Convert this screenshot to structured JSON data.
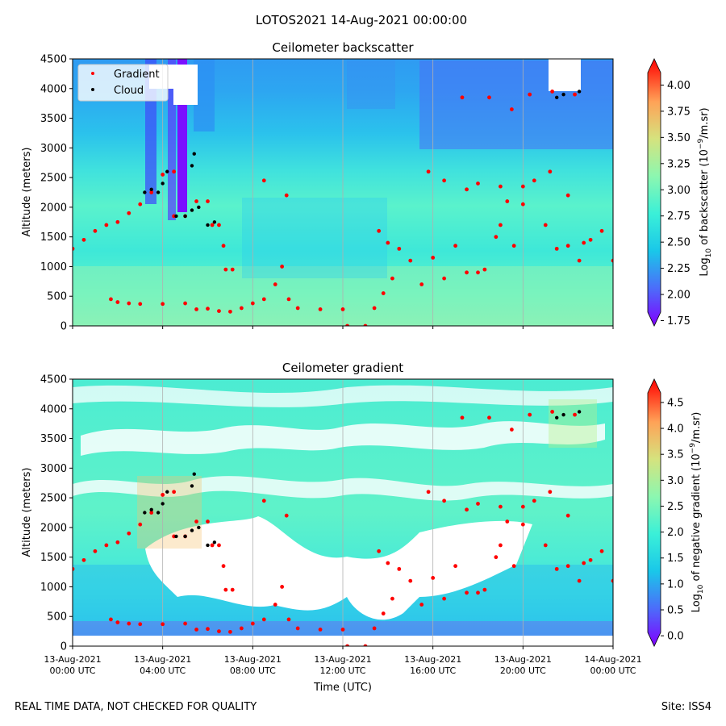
{
  "suptitle": "LOTOS2021 14-Aug-2021 00:00:00",
  "footer": {
    "left": "REAL TIME DATA, NOT CHECKED FOR QUALITY",
    "right": "Site: ISS4"
  },
  "colors": {
    "gradient_marker": "#ff0000",
    "cloud_marker": "#000000",
    "colormap": "rainbow",
    "no_data": "#ffffff"
  },
  "x_axis": {
    "label": "Time (UTC)",
    "tick_labels": [
      [
        "13-Aug-2021",
        "00:00 UTC"
      ],
      [
        "13-Aug-2021",
        "04:00 UTC"
      ],
      [
        "13-Aug-2021",
        "08:00 UTC"
      ],
      [
        "13-Aug-2021",
        "12:00 UTC"
      ],
      [
        "13-Aug-2021",
        "16:00 UTC"
      ],
      [
        "13-Aug-2021",
        "20:00 UTC"
      ],
      [
        "14-Aug-2021",
        "00:00 UTC"
      ]
    ]
  },
  "chart_data": [
    {
      "type": "heatmap",
      "title": "Ceilometer backscatter",
      "xlabel": "",
      "ylabel": "Altitude (meters)",
      "xlim": [
        0,
        24
      ],
      "ylim": [
        0,
        4500
      ],
      "yticks": [
        0,
        500,
        1000,
        1500,
        2000,
        2500,
        3000,
        3500,
        4000,
        4500
      ],
      "grid": "vertical only",
      "legend": {
        "placement": "top-left",
        "entries": [
          "Gradient",
          "Cloud"
        ]
      },
      "colorbar": {
        "label": "Log10 of backscatter (10^-9/m.sr)",
        "range": [
          1.7,
          4.25
        ],
        "ticks": [
          1.75,
          2.0,
          2.25,
          2.5,
          2.75,
          3.0,
          3.25,
          3.5,
          3.75,
          4.0
        ],
        "tick_labels": [
          "1.75",
          "2.00",
          "2.25",
          "2.50",
          "2.75",
          "3.00",
          "3.25",
          "3.50",
          "3.75",
          "4.00"
        ],
        "extend": "both"
      },
      "series": [
        {
          "name": "Gradient",
          "marker": "dot",
          "points": [
            [
              0,
              1300
            ],
            [
              0.5,
              1450
            ],
            [
              1,
              1600
            ],
            [
              1.5,
              1700
            ],
            [
              2,
              1750
            ],
            [
              2.5,
              1900
            ],
            [
              3,
              2050
            ],
            [
              3.5,
              2250
            ],
            [
              4,
              2550
            ],
            [
              4.5,
              2600
            ],
            [
              4.5,
              1850
            ],
            [
              5,
              1850
            ],
            [
              5.5,
              2100
            ],
            [
              6,
              2100
            ],
            [
              6.2,
              1700
            ],
            [
              6.5,
              1700
            ],
            [
              6.7,
              1350
            ],
            [
              6.8,
              950
            ],
            [
              7.1,
              950
            ],
            [
              1.7,
              450
            ],
            [
              2,
              400
            ],
            [
              2.5,
              380
            ],
            [
              3,
              370
            ],
            [
              4,
              370
            ],
            [
              5,
              380
            ],
            [
              5.5,
              280
            ],
            [
              6,
              290
            ],
            [
              6.5,
              250
            ],
            [
              7,
              240
            ],
            [
              7.5,
              300
            ],
            [
              8,
              380
            ],
            [
              8.5,
              450
            ],
            [
              9,
              700
            ],
            [
              9.3,
              1000
            ],
            [
              9.6,
              450
            ],
            [
              10,
              300
            ],
            [
              11,
              280
            ],
            [
              12,
              280
            ],
            [
              12.2,
              0
            ],
            [
              13,
              0
            ],
            [
              13.4,
              300
            ],
            [
              13.8,
              550
            ],
            [
              14.2,
              800
            ],
            [
              13.6,
              1600
            ],
            [
              14,
              1400
            ],
            [
              14.5,
              1300
            ],
            [
              15,
              1100
            ],
            [
              15.5,
              700
            ],
            [
              16,
              1150
            ],
            [
              16.5,
              800
            ],
            [
              17,
              1350
            ],
            [
              17.5,
              900
            ],
            [
              18,
              900
            ],
            [
              18.3,
              950
            ],
            [
              18.8,
              1500
            ],
            [
              19,
              1700
            ],
            [
              19.3,
              2100
            ],
            [
              19.6,
              1350
            ],
            [
              20,
              2050
            ],
            [
              21,
              1700
            ],
            [
              21.5,
              1300
            ],
            [
              22,
              1350
            ],
            [
              22.5,
              1100
            ],
            [
              22.7,
              1400
            ],
            [
              23,
              1450
            ],
            [
              23.5,
              1600
            ],
            [
              24,
              1100
            ],
            [
              15.8,
              2600
            ],
            [
              16.5,
              2450
            ],
            [
              17.5,
              2300
            ],
            [
              18,
              2400
            ],
            [
              19,
              2350
            ],
            [
              20,
              2350
            ],
            [
              20.5,
              2450
            ],
            [
              21.2,
              2600
            ],
            [
              22,
              2200
            ],
            [
              8.5,
              2450
            ],
            [
              9.5,
              2200
            ],
            [
              18.5,
              3850
            ],
            [
              19.5,
              3650
            ],
            [
              17.3,
              3850
            ],
            [
              20.3,
              3900
            ],
            [
              21.3,
              3950
            ],
            [
              22.3,
              3900
            ]
          ]
        },
        {
          "name": "Cloud",
          "marker": "dot",
          "points": [
            [
              3.2,
              2250
            ],
            [
              3.5,
              2300
            ],
            [
              3.8,
              2250
            ],
            [
              4,
              2400
            ],
            [
              4.2,
              2600
            ],
            [
              4.6,
              1850
            ],
            [
              5,
              1850
            ],
            [
              5.3,
              1950
            ],
            [
              5.6,
              2000
            ],
            [
              6,
              1700
            ],
            [
              6.3,
              1750
            ],
            [
              5.3,
              2700
            ],
            [
              5.4,
              2900
            ],
            [
              21.5,
              3850
            ],
            [
              21.8,
              3900
            ],
            [
              22.5,
              3950
            ]
          ]
        }
      ]
    },
    {
      "type": "heatmap",
      "title": "Ceilometer gradient",
      "xlabel": "Time (UTC)",
      "ylabel": "Altitude (meters)",
      "xlim": [
        0,
        24
      ],
      "ylim": [
        0,
        4500
      ],
      "yticks": [
        0,
        500,
        1000,
        1500,
        2000,
        2500,
        3000,
        3500,
        4000,
        4500
      ],
      "grid": "vertical only",
      "colorbar": {
        "label": "Log10 of negative gradient (10^-9/m.sr)",
        "range": [
          -0.2,
          4.95
        ],
        "ticks": [
          0.0,
          0.5,
          1.0,
          1.5,
          2.0,
          2.5,
          3.0,
          3.5,
          4.0,
          4.5
        ],
        "tick_labels": [
          "0.0",
          "0.5",
          "1.0",
          "1.5",
          "2.0",
          "2.5",
          "3.0",
          "3.5",
          "4.0",
          "4.5"
        ],
        "extend": "both"
      },
      "series": [
        {
          "name": "Gradient",
          "marker": "dot",
          "same_as_panel": 0
        },
        {
          "name": "Cloud",
          "marker": "dot",
          "same_as_panel": 0
        }
      ]
    }
  ]
}
